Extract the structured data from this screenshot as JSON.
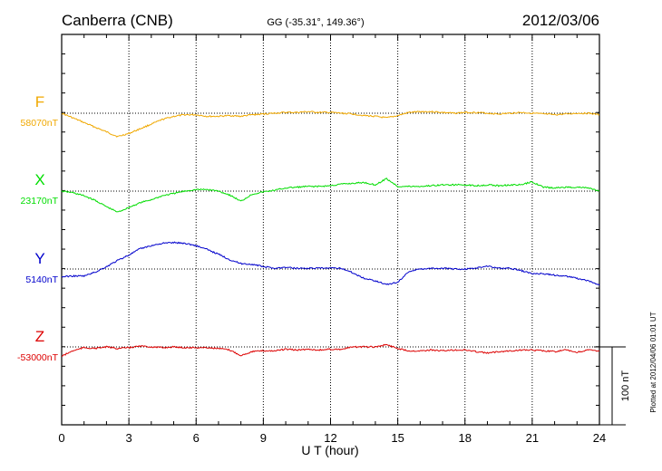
{
  "header": {
    "station": "Canberra (CNB)",
    "coords": "GG (-35.31°, 149.36°)",
    "date": "2012/03/06"
  },
  "footer": {
    "plotted": "Plotted at 2012/04/06 01:01  UT"
  },
  "scale": {
    "label": "100 nT"
  },
  "colors": {
    "F": "#f0a800",
    "X": "#00dd00",
    "Y": "#0000cc",
    "Z": "#dd0000"
  },
  "chart_data": {
    "type": "line",
    "xlabel": "U T (hour)",
    "xlim": [
      0,
      24
    ],
    "x_ticks": [
      0,
      3,
      6,
      9,
      12,
      15,
      18,
      21,
      24
    ],
    "grid": true,
    "scale_bar_nT": 100,
    "series": [
      {
        "name": "F",
        "baseline_label": "58070nT",
        "baseline_nT": 58070,
        "x": [
          0,
          0.5,
          1,
          1.5,
          2,
          2.5,
          3,
          3.5,
          4,
          4.5,
          5,
          5.5,
          6,
          6.5,
          7,
          7.5,
          8,
          8.5,
          9,
          9.5,
          10,
          10.5,
          11,
          11.5,
          12,
          12.5,
          13,
          13.5,
          14,
          14.5,
          15,
          15.5,
          16,
          16.5,
          17,
          17.5,
          18,
          18.5,
          19,
          19.5,
          20,
          20.5,
          21,
          21.5,
          22,
          22.5,
          23,
          23.5,
          24
        ],
        "y": [
          58070,
          58064,
          58058,
          58052,
          58046,
          58040,
          58044,
          58050,
          58056,
          58062,
          58066,
          58068,
          58068,
          58066,
          58066,
          58067,
          58066,
          58068,
          58069,
          58070,
          58071,
          58071,
          58072,
          58071,
          58071,
          58070,
          58069,
          58067,
          58066,
          58064,
          58067,
          58071,
          58072,
          58072,
          58071,
          58070,
          58071,
          58071,
          58070,
          58069,
          58070,
          58071,
          58070,
          58069,
          58068,
          58069,
          58070,
          58070,
          58068
        ]
      },
      {
        "name": "X",
        "baseline_label": "23170nT",
        "baseline_nT": 23170,
        "x": [
          0,
          0.5,
          1,
          1.5,
          2,
          2.5,
          3,
          3.5,
          4,
          4.5,
          5,
          5.5,
          6,
          6.5,
          7,
          7.5,
          8,
          8.5,
          9,
          9.5,
          10,
          10.5,
          11,
          11.5,
          12,
          12.5,
          13,
          13.5,
          14,
          14.5,
          15,
          15.5,
          16,
          16.5,
          17,
          17.5,
          18,
          18.5,
          19,
          19.5,
          20,
          20.5,
          21,
          21.5,
          22,
          22.5,
          23,
          23.5,
          24
        ],
        "y": [
          23170,
          23168,
          23164,
          23158,
          23150,
          23143,
          23149,
          23155,
          23159,
          23164,
          23167,
          23170,
          23172,
          23172,
          23170,
          23165,
          23157,
          23166,
          23169,
          23171,
          23174,
          23175,
          23176,
          23176,
          23177,
          23179,
          23180,
          23181,
          23178,
          23186,
          23176,
          23176,
          23176,
          23177,
          23178,
          23178,
          23178,
          23177,
          23178,
          23177,
          23178,
          23178,
          23182,
          23175,
          23174,
          23175,
          23175,
          23174,
          23170
        ]
      },
      {
        "name": "Y",
        "baseline_label": "5140nT",
        "baseline_nT": 5140,
        "x": [
          0,
          0.5,
          1,
          1.5,
          2,
          2.5,
          3,
          3.5,
          4,
          4.5,
          5,
          5.5,
          6,
          6.5,
          7,
          7.5,
          8,
          8.5,
          9,
          9.5,
          10,
          10.5,
          11,
          11.5,
          12,
          12.5,
          13,
          13.5,
          14,
          14.5,
          15,
          15.5,
          16,
          16.5,
          17,
          17.5,
          18,
          18.5,
          19,
          19.5,
          20,
          20.5,
          21,
          21.5,
          22,
          22.5,
          23,
          23.5,
          24
        ],
        "y": [
          5130,
          5131,
          5131,
          5136,
          5143,
          5151,
          5158,
          5166,
          5170,
          5173,
          5174,
          5173,
          5170,
          5165,
          5159,
          5152,
          5147,
          5146,
          5143,
          5141,
          5142,
          5141,
          5141,
          5141,
          5141,
          5141,
          5135,
          5128,
          5125,
          5120,
          5123,
          5137,
          5140,
          5141,
          5141,
          5140,
          5140,
          5141,
          5144,
          5141,
          5141,
          5138,
          5134,
          5134,
          5132,
          5131,
          5128,
          5125,
          5119
        ]
      },
      {
        "name": "Z",
        "baseline_label": "-53000nT",
        "baseline_nT": -53000,
        "x": [
          0,
          0.5,
          1,
          1.5,
          2,
          2.5,
          3,
          3.5,
          4,
          4.5,
          5,
          5.5,
          6,
          6.5,
          7,
          7.5,
          8,
          8.5,
          9,
          9.5,
          10,
          10.5,
          11,
          11.5,
          12,
          12.5,
          13,
          13.5,
          14,
          14.5,
          15,
          15.5,
          16,
          16.5,
          17,
          17.5,
          18,
          18.5,
          19,
          19.5,
          20,
          20.5,
          21,
          21.5,
          22,
          22.5,
          23,
          23.5,
          24
        ],
        "y": [
          -53012,
          -53005,
          -53001,
          -53002,
          -53000,
          -53002,
          -53001,
          -52999,
          -53000,
          -53001,
          -53000,
          -53001,
          -53001,
          -53001,
          -53002,
          -53004,
          -53011,
          -53006,
          -53005,
          -53005,
          -53003,
          -53004,
          -53003,
          -53004,
          -53003,
          -53003,
          -53000,
          -53000,
          -53000,
          -52997,
          -53002,
          -53005,
          -53005,
          -53004,
          -53005,
          -53004,
          -53004,
          -53006,
          -53008,
          -53006,
          -53005,
          -53004,
          -53004,
          -53005,
          -53006,
          -53004,
          -53007,
          -53004,
          -53005
        ]
      }
    ]
  }
}
